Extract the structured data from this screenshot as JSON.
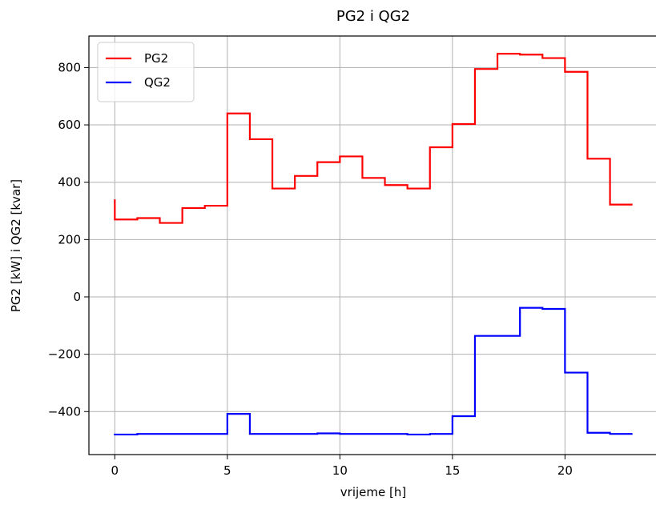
{
  "chart_data": {
    "type": "line",
    "drawstyle": "steps-post",
    "title": "PG2 i QG2",
    "xlabel": "vrijeme [h]",
    "ylabel": "PG2 [kW] i QG2 [kvar]",
    "xlim": [
      -1.15,
      24.15
    ],
    "ylim": [
      -550,
      910
    ],
    "xticks": [
      0,
      5,
      10,
      15,
      20
    ],
    "yticks": [
      -400,
      -200,
      0,
      200,
      400,
      600,
      800
    ],
    "xtick_labels": [
      "0",
      "5",
      "10",
      "15",
      "20"
    ],
    "ytick_labels": [
      "−400",
      "−200",
      "0",
      "200",
      "400",
      "600",
      "800"
    ],
    "grid": true,
    "legend_position": "top-left",
    "x": [
      0,
      1,
      2,
      3,
      4,
      5,
      6,
      7,
      8,
      9,
      10,
      11,
      12,
      13,
      14,
      15,
      16,
      17,
      18,
      19,
      20,
      21,
      22,
      23
    ],
    "series": [
      {
        "name": "PG2",
        "color": "#ff0000",
        "start_value": 340,
        "values": [
          270,
          275,
          258,
          310,
          318,
          640,
          550,
          378,
          422,
          470,
          490,
          415,
          390,
          378,
          522,
          603,
          795,
          848,
          845,
          833,
          785,
          482,
          322,
          322
        ]
      },
      {
        "name": "QG2",
        "color": "#0000ff",
        "start_value": -483,
        "values": [
          -480,
          -478,
          -478,
          -478,
          -478,
          -408,
          -478,
          -478,
          -478,
          -476,
          -478,
          -478,
          -478,
          -480,
          -478,
          -416,
          -136,
          -136,
          -38,
          -42,
          -264,
          -474,
          -478,
          -478
        ]
      }
    ]
  }
}
